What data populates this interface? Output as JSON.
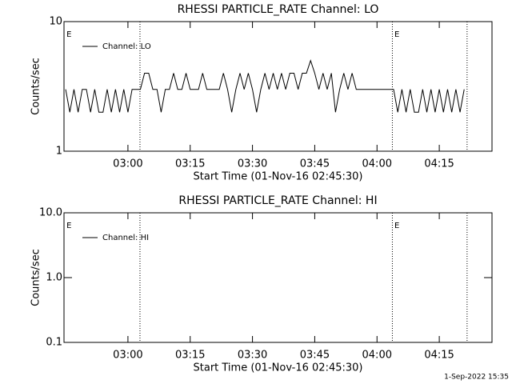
{
  "chart_data": [
    {
      "type": "line",
      "title": "RHESSI PARTICLE_RATE Channel: LO",
      "x_label": "Start Time (01-Nov-16 02:45:30)",
      "y_label": "Counts/sec",
      "log_y": true,
      "xlim": [
        164.6,
        267.7
      ],
      "xticks": [
        {
          "value": 180,
          "label": "03:00"
        },
        {
          "value": 195,
          "label": "03:15"
        },
        {
          "value": 210,
          "label": "03:30"
        },
        {
          "value": 225,
          "label": "03:45"
        },
        {
          "value": 240,
          "label": "04:00"
        },
        {
          "value": 255,
          "label": "04:15"
        }
      ],
      "ylim": [
        1,
        10
      ],
      "yticks": [
        1,
        10
      ],
      "vlines": [
        182.9,
        243.7,
        261.7
      ],
      "annotations": [
        {
          "text": "E",
          "x": 165.2
        },
        {
          "text": "E",
          "x": 244.2
        }
      ],
      "x": [
        165,
        166,
        167,
        168,
        169,
        170,
        171,
        172,
        173,
        174,
        175,
        176,
        177,
        178,
        179,
        180,
        181,
        182,
        183,
        184,
        185,
        186,
        187,
        188,
        189,
        190,
        191,
        192,
        193,
        194,
        195,
        196,
        197,
        198,
        199,
        200,
        201,
        202,
        203,
        204,
        205,
        206,
        207,
        208,
        209,
        210,
        211,
        212,
        213,
        214,
        215,
        216,
        217,
        218,
        219,
        220,
        221,
        222,
        223,
        224,
        225,
        226,
        227,
        228,
        229,
        230,
        231,
        232,
        233,
        234,
        235,
        236,
        237,
        238,
        239,
        240,
        241,
        242,
        243,
        244,
        245,
        246,
        247,
        248,
        249,
        250,
        251,
        252,
        253,
        254,
        255,
        256,
        257,
        258,
        259,
        260,
        261
      ],
      "series": [
        {
          "name": "Channel: LO",
          "color": "#000000",
          "values": [
            3,
            2,
            3,
            2,
            3,
            3,
            2,
            3,
            2,
            2,
            3,
            2,
            3,
            2,
            3,
            2,
            3,
            3,
            3,
            4,
            4,
            3,
            3,
            2,
            3,
            3,
            4,
            3,
            3,
            4,
            3,
            3,
            3,
            4,
            3,
            3,
            3,
            3,
            4,
            3,
            2,
            3,
            4,
            3,
            4,
            3,
            2,
            3,
            4,
            3,
            4,
            3,
            4,
            3,
            4,
            4,
            3,
            4,
            4,
            5,
            4,
            3,
            4,
            3,
            4,
            2,
            3,
            4,
            3,
            4,
            3,
            3,
            3,
            3,
            3,
            3,
            3,
            3,
            3,
            3,
            2,
            3,
            2,
            3,
            2,
            2,
            3,
            2,
            3,
            2,
            3,
            2,
            3,
            2,
            3,
            2,
            3
          ]
        }
      ]
    },
    {
      "type": "line",
      "title": "RHESSI PARTICLE_RATE Channel: HI",
      "x_label": "Start Time (01-Nov-16 02:45:30)",
      "y_label": "Counts/sec",
      "log_y": true,
      "xlim": [
        164.6,
        267.7
      ],
      "xticks": [
        {
          "value": 180,
          "label": "03:00"
        },
        {
          "value": 195,
          "label": "03:15"
        },
        {
          "value": 210,
          "label": "03:30"
        },
        {
          "value": 225,
          "label": "03:45"
        },
        {
          "value": 240,
          "label": "04:00"
        },
        {
          "value": 255,
          "label": "04:15"
        }
      ],
      "ylim": [
        0.1,
        10
      ],
      "yticks": [
        0.1,
        {
          "value": 1,
          "label": "1.0"
        },
        {
          "value": 10,
          "label": "10.0"
        }
      ],
      "vlines": [
        182.9,
        243.7,
        261.7
      ],
      "annotations": [
        {
          "text": "E",
          "x": 165.2
        },
        {
          "text": "E",
          "x": 244.2
        }
      ],
      "x": [],
      "series": [
        {
          "name": "Channel: HI",
          "color": "#000000",
          "values": []
        }
      ]
    }
  ],
  "footer": "1-Sep-2022 15:35"
}
